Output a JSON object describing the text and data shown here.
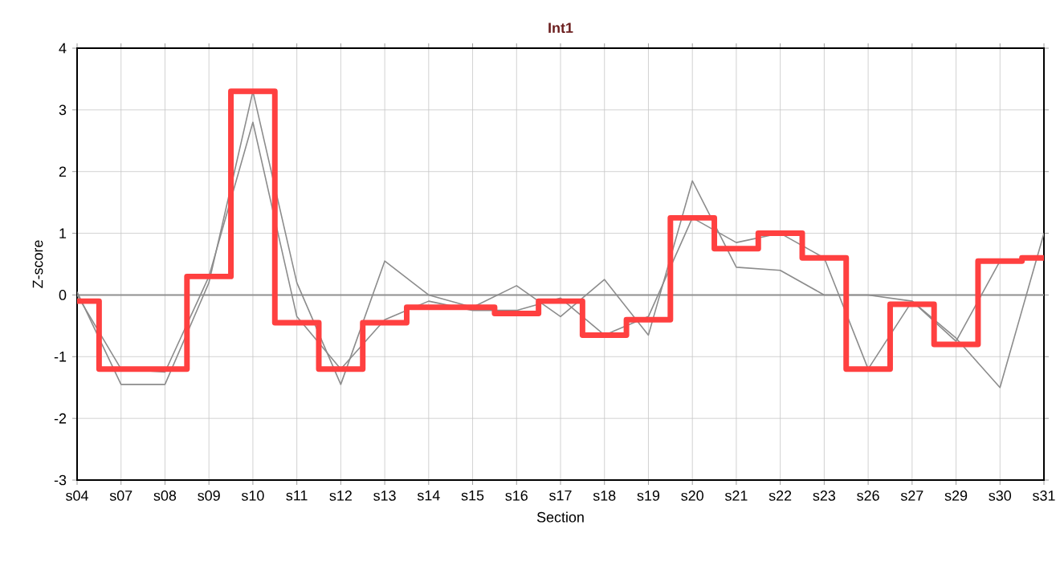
{
  "chart_data": {
    "type": "line",
    "title": "Int1",
    "xlabel": "Section",
    "ylabel": "Z-score",
    "categories": [
      "s04",
      "s07",
      "s08",
      "s09",
      "s10",
      "s11",
      "s12",
      "s13",
      "s14",
      "s15",
      "s16",
      "s17",
      "s18",
      "s19",
      "s20",
      "s21",
      "s22",
      "s23",
      "s26",
      "s27",
      "s29",
      "s30",
      "s31"
    ],
    "ylim": [
      -3,
      4
    ],
    "yticks": [
      -3,
      -2,
      -1,
      0,
      1,
      2,
      3,
      4
    ],
    "grid": true,
    "marker": "none",
    "line_style": "solid",
    "ref_lines": [
      {
        "axis": "y",
        "value": 0,
        "color": "#909090"
      }
    ],
    "series": [
      {
        "color": "#8c8c8c",
        "values": [
          0.05,
          -1.45,
          -1.45,
          0.2,
          3.3,
          0.2,
          -1.45,
          0.55,
          0,
          -0.2,
          0.15,
          -0.35,
          0.25,
          -0.65,
          1.85,
          0.45,
          0.4,
          0,
          0,
          -0.1,
          -0.7,
          -1.5,
          1.0
        ]
      },
      {
        "color": "#8c8c8c",
        "values": [
          0,
          -1.2,
          -1.25,
          0.3,
          2.8,
          -0.35,
          -1.2,
          -0.4,
          -0.1,
          -0.25,
          -0.25,
          -0.05,
          -0.65,
          -0.35,
          1.25,
          0.85,
          1.0,
          0.6,
          -1.2,
          -0.1,
          -0.75,
          0.55,
          0.6
        ]
      },
      {
        "type": "step",
        "color": "#ff4040",
        "values": [
          -0.1,
          -1.2,
          -1.2,
          0.3,
          3.3,
          -0.45,
          -1.2,
          -0.45,
          -0.2,
          -0.2,
          -0.3,
          -0.1,
          -0.65,
          -0.4,
          1.25,
          0.75,
          1.0,
          0.6,
          -1.2,
          -0.15,
          -0.8,
          0.55,
          0.6
        ]
      }
    ]
  }
}
